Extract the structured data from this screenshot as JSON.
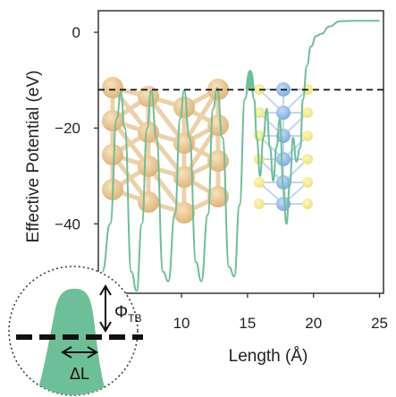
{
  "chart_data": {
    "type": "line",
    "xlabel": "Length (Å)",
    "ylabel": "Effective Potential (eV)",
    "xlim": [
      3.7,
      25.3
    ],
    "ylim": [
      -54.5,
      4.5
    ],
    "x_ticks": [
      10,
      15,
      20,
      25
    ],
    "y_ticks": [
      0,
      -20,
      -40
    ],
    "fermi_level": -12,
    "grid": false,
    "series": [
      {
        "color": "#6dbf98",
        "points": [
          [
            4.0,
            -50
          ],
          [
            4.6,
            -40
          ],
          [
            5.1,
            -18
          ],
          [
            5.4,
            -12.5
          ],
          [
            5.7,
            -20
          ],
          [
            6.2,
            -50
          ],
          [
            6.6,
            -54
          ],
          [
            7.0,
            -40
          ],
          [
            7.4,
            -20
          ],
          [
            7.7,
            -12.2
          ],
          [
            8.1,
            -22
          ],
          [
            8.6,
            -50
          ],
          [
            9.0,
            -52
          ],
          [
            9.5,
            -38
          ],
          [
            9.9,
            -18
          ],
          [
            10.2,
            -12.1
          ],
          [
            10.6,
            -22
          ],
          [
            11.1,
            -48
          ],
          [
            11.5,
            -52
          ],
          [
            12.0,
            -38
          ],
          [
            12.4,
            -16
          ],
          [
            12.7,
            -11.6
          ],
          [
            13.1,
            -22
          ],
          [
            13.6,
            -49
          ],
          [
            14.0,
            -51
          ],
          [
            14.4,
            -36
          ],
          [
            14.8,
            -14
          ],
          [
            15.2,
            -8
          ],
          [
            15.5,
            -14
          ],
          [
            15.7,
            -22
          ],
          [
            15.95,
            -30
          ],
          [
            16.2,
            -22
          ],
          [
            16.45,
            -16
          ],
          [
            16.7,
            -24
          ],
          [
            16.95,
            -31
          ],
          [
            17.2,
            -24
          ],
          [
            17.45,
            -18
          ],
          [
            17.7,
            -32
          ],
          [
            17.95,
            -40
          ],
          [
            18.2,
            -32
          ],
          [
            18.45,
            -22
          ],
          [
            18.7,
            -27
          ],
          [
            19.0,
            -24
          ],
          [
            19.2,
            -14
          ],
          [
            19.5,
            -7
          ],
          [
            19.8,
            -3
          ],
          [
            20.2,
            -0.8
          ],
          [
            20.6,
            -0.3
          ],
          [
            21.2,
            1.2
          ],
          [
            22.0,
            2.3
          ],
          [
            23.0,
            2.4
          ],
          [
            24.0,
            2.4
          ],
          [
            25.0,
            2.4
          ]
        ]
      }
    ]
  },
  "inset": {
    "barrier_label": "Φ",
    "barrier_subscript": "TB",
    "width_label": "ΔL"
  }
}
